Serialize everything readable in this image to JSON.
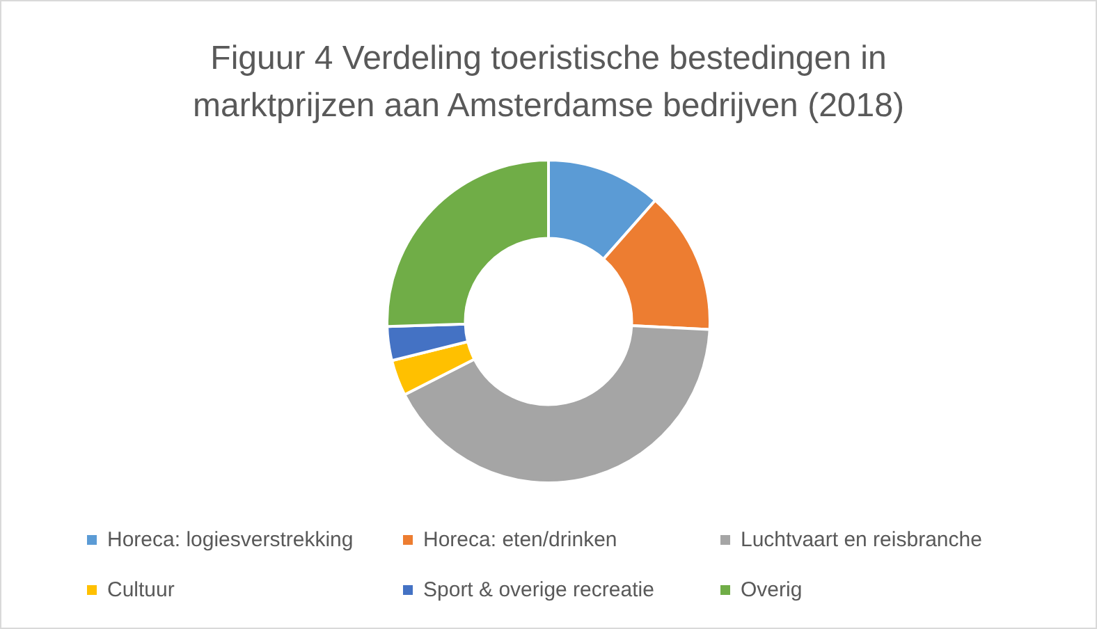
{
  "chart_data": {
    "type": "donut",
    "title": "Figuur 4 Verdeling toeristische bestedingen in marktprijzen aan Amsterdamse bedrijven (2018)",
    "categories": [
      "Horeca: logiesverstrekking",
      "Horeca: eten/drinken",
      "Luchtvaart en reisbranche",
      "Cultuur",
      "Sport & overige recreatie",
      "Overig"
    ],
    "values": [
      11.5,
      14.3,
      41.7,
      3.6,
      3.4,
      25.5
    ],
    "colors": [
      "#5b9bd5",
      "#ed7d31",
      "#a5a5a5",
      "#ffc000",
      "#4472c4",
      "#70ad47"
    ],
    "legend": "bottom"
  }
}
